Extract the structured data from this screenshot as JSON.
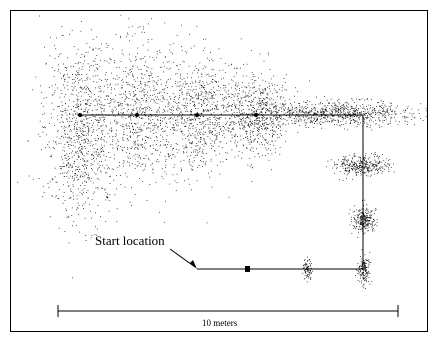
{
  "labels": {
    "start": "Start location",
    "scale": "10 meters"
  },
  "colors": {
    "ink": "#000000",
    "background": "#ffffff"
  }
}
